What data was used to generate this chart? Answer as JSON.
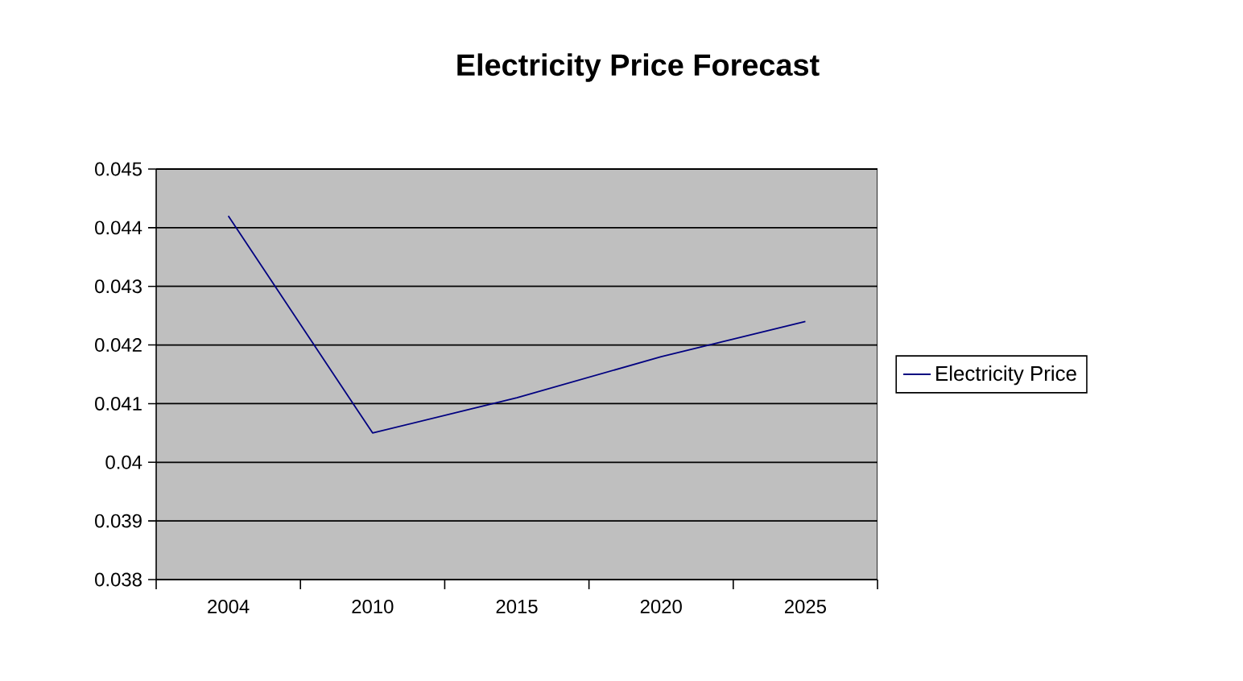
{
  "chart_data": {
    "type": "line",
    "title": "Electricity Price Forecast",
    "categories": [
      "2004",
      "2010",
      "2015",
      "2020",
      "2025"
    ],
    "series": [
      {
        "name": "Electricity Price",
        "color": "#000080",
        "values": [
          0.0442,
          0.0405,
          0.0411,
          0.0418,
          0.0424
        ]
      }
    ],
    "ylim": [
      0.038,
      0.045
    ],
    "yticks": [
      0.038,
      0.039,
      0.04,
      0.041,
      0.042,
      0.043,
      0.044,
      0.045
    ],
    "grid": "y",
    "legend": "right",
    "marker": "none",
    "line_style": "solid"
  }
}
